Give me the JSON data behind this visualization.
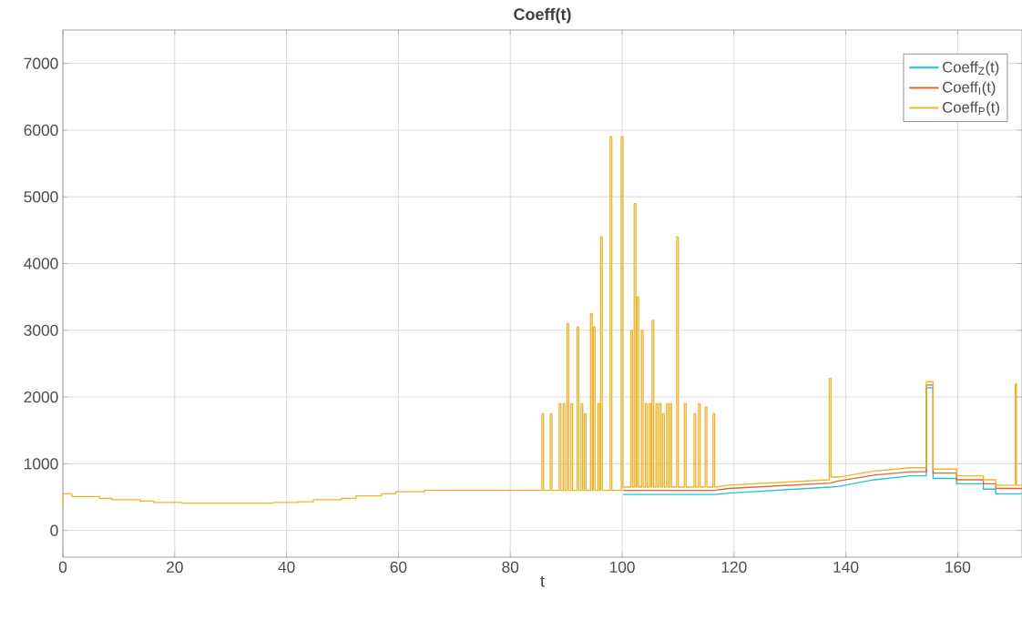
{
  "chart_data": {
    "type": "line",
    "title": "**Coeff(t)**",
    "xlabel": "t",
    "xlim": [
      0,
      171.5
    ],
    "ylim": [
      -400,
      7500
    ],
    "xticks": [
      0,
      20,
      40,
      60,
      80,
      100,
      120,
      140,
      160
    ],
    "yticks": [
      0,
      1000,
      2000,
      3000,
      4000,
      5000,
      6000,
      7000
    ],
    "grid": true,
    "legend": "top right",
    "line_style": "solid",
    "marker": "none",
    "x": [
      0,
      0.1,
      1.6,
      1.6,
      6.6,
      6.6,
      8.8,
      8.8,
      13.8,
      13.8,
      16.3,
      16.3,
      21.3,
      21.3,
      37.6,
      37.6,
      42,
      42,
      44.8,
      44.8,
      49.8,
      49.8,
      52.4,
      52.4,
      57,
      57,
      59.5,
      59.5,
      64.6,
      64.6,
      66.4,
      66.4,
      85.65,
      85.65,
      85.95,
      85.95,
      87.15,
      87.15,
      87.45,
      87.45,
      88.75,
      88.75,
      89.05,
      89.05,
      89.45,
      89.45,
      89.75,
      89.75,
      90.15,
      90.15,
      90.45,
      90.45,
      90.85,
      90.85,
      91.15,
      91.15,
      91.95,
      91.95,
      92.25,
      92.25,
      92.65,
      92.65,
      92.95,
      92.95,
      93.25,
      93.25,
      93.55,
      93.55,
      94.35,
      94.35,
      94.65,
      94.65,
      94.85,
      94.85,
      95.15,
      95.15,
      95.65,
      95.65,
      95.95,
      95.95,
      96.15,
      96.15,
      96.45,
      96.45,
      97.85,
      97.85,
      98.15,
      98.15,
      99.85,
      99.85,
      100.15,
      100.15,
      101.55,
      101.55,
      101.85,
      101.85,
      102.15,
      102.15,
      102.45,
      102.45,
      102.65,
      102.65,
      102.95,
      102.95,
      103.45,
      103.45,
      103.75,
      103.75,
      104.15,
      104.15,
      104.45,
      104.45,
      104.85,
      104.85,
      105.15,
      105.15,
      105.35,
      105.35,
      105.65,
      105.65,
      106.05,
      106.05,
      106.35,
      106.35,
      106.65,
      106.65,
      106.95,
      106.95,
      107.25,
      107.25,
      107.55,
      107.55,
      107.95,
      107.95,
      108.25,
      108.25,
      108.55,
      108.55,
      108.85,
      108.85,
      109.75,
      109.75,
      110.05,
      110.05,
      111.15,
      111.15,
      111.45,
      111.45,
      112.85,
      112.85,
      113.15,
      113.15,
      113.65,
      113.65,
      113.95,
      113.95,
      114.85,
      114.85,
      115.15,
      115.15,
      116.25,
      116.25,
      116.55,
      116.55,
      119.1,
      137.0,
      137.05,
      137.05,
      137.35,
      137.35,
      138.6,
      145.1,
      151.6,
      154.4,
      154.4,
      155.6,
      155.6,
      159.8,
      159.8,
      164.6,
      164.6,
      166.8,
      166.8,
      170.3,
      170.3,
      170.5,
      170.5,
      171.5
    ],
    "series": [
      {
        "name": "Coeff$_{Z}$(t)",
        "color": "#22c4c8",
        "x": [
          100.15,
          116.55,
          119.1,
          137.2,
          138.6,
          145.1,
          151.6,
          154.4,
          154.4,
          155.6,
          155.6,
          159.8,
          159.8,
          164.6,
          164.6,
          166.8,
          166.8,
          171.5
        ],
        "values": [
          540,
          540,
          560,
          650,
          660,
          760,
          820,
          820,
          2140,
          2140,
          780,
          780,
          700,
          700,
          620,
          620,
          550,
          550
        ]
      },
      {
        "name": "Coeff$_{I}$(t)",
        "color": "#e4652e",
        "x": [
          100.15,
          116.55,
          119.1,
          137.2,
          138.6,
          145.1,
          151.6,
          154.4,
          154.4,
          155.6,
          155.6,
          159.8,
          159.8,
          164.6,
          164.6,
          166.8,
          166.8,
          171.5
        ],
        "values": [
          600,
          600,
          630,
          710,
          740,
          830,
          880,
          880,
          2180,
          2180,
          860,
          860,
          760,
          760,
          700,
          700,
          630,
          630
        ]
      },
      {
        "name": "Coeff$_{P}$(t)",
        "color": "#edb52f",
        "values": [
          350,
          550,
          550,
          510,
          510,
          480,
          480,
          460,
          460,
          440,
          440,
          420,
          420,
          410,
          410,
          420,
          420,
          430,
          430,
          460,
          460,
          480,
          480,
          520,
          520,
          550,
          550,
          580,
          580,
          600,
          600,
          600,
          600,
          1750,
          1750,
          600,
          600,
          1750,
          1750,
          600,
          600,
          1900,
          1900,
          600,
          600,
          1900,
          1900,
          600,
          600,
          3100,
          3100,
          600,
          600,
          1900,
          1900,
          600,
          600,
          3050,
          3050,
          600,
          600,
          1900,
          1900,
          600,
          600,
          1750,
          1750,
          600,
          600,
          3250,
          3250,
          600,
          600,
          3050,
          3050,
          600,
          600,
          1900,
          1900,
          600,
          600,
          4400,
          4400,
          600,
          600,
          5900,
          5900,
          600,
          600,
          5900,
          5900,
          650,
          650,
          3000,
          3000,
          650,
          650,
          4900,
          4900,
          650,
          650,
          3500,
          3500,
          650,
          650,
          3000,
          3000,
          650,
          650,
          1900,
          1900,
          650,
          650,
          1900,
          1900,
          650,
          650,
          3150,
          3150,
          650,
          650,
          1900,
          1900,
          650,
          650,
          1900,
          1900,
          650,
          650,
          1750,
          1750,
          650,
          650,
          1900,
          1900,
          650,
          650,
          1900,
          1900,
          650,
          650,
          4400,
          4400,
          650,
          650,
          1900,
          1900,
          650,
          650,
          1750,
          1750,
          650,
          650,
          1900,
          1900,
          650,
          650,
          1850,
          1850,
          650,
          650,
          1750,
          1750,
          650,
          680,
          760,
          760,
          2280,
          2280,
          800,
          800,
          890,
          940,
          940,
          2230,
          2230,
          920,
          920,
          820,
          820,
          760,
          760,
          680,
          680,
          2200,
          2200,
          680,
          680
        ]
      }
    ]
  }
}
